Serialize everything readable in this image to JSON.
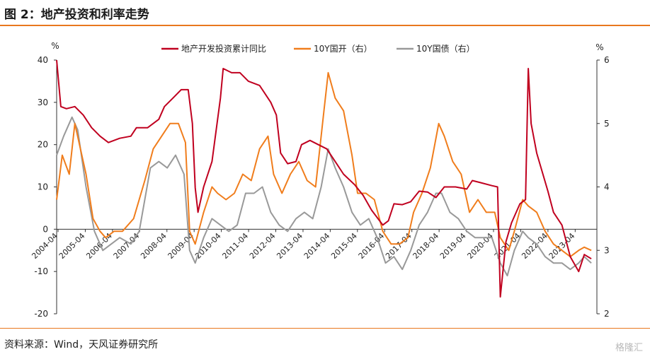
{
  "figure": {
    "title": "图 2：地产投资和利率走势",
    "source": "资料来源：Wind，天风证券研究所",
    "watermark": "格隆汇"
  },
  "chart_data": {
    "type": "line",
    "left_axis_unit": "%",
    "right_axis_unit": "%",
    "ylim_left": [
      -20,
      40
    ],
    "ylim_right": [
      2,
      6
    ],
    "left_ticks": [
      -20,
      -10,
      0,
      10,
      20,
      30,
      40
    ],
    "right_ticks": [
      2,
      3,
      4,
      5,
      6
    ],
    "x_labels": [
      "2004-04",
      "2005-04",
      "2006-04",
      "2007-04",
      "2008-04",
      "2009-04",
      "2010-04",
      "2011-04",
      "2012-04",
      "2013-04",
      "2014-04",
      "2015-04",
      "2016-04",
      "2017-04",
      "2018-04",
      "2019-04",
      "2020-04",
      "2021-04",
      "2022-04",
      "2023-04"
    ],
    "legend_position": "top",
    "series": [
      {
        "name": "地产开发投资累计同比",
        "axis": "left",
        "color": "#c0001f",
        "points": [
          [
            2004.25,
            40
          ],
          [
            2004.4,
            29
          ],
          [
            2004.6,
            28.5
          ],
          [
            2004.9,
            29
          ],
          [
            2005.2,
            27
          ],
          [
            2005.5,
            24
          ],
          [
            2005.8,
            22
          ],
          [
            2006.1,
            20.5
          ],
          [
            2006.5,
            21.5
          ],
          [
            2006.9,
            22
          ],
          [
            2007.1,
            24
          ],
          [
            2007.5,
            24
          ],
          [
            2007.9,
            26
          ],
          [
            2008.1,
            29
          ],
          [
            2008.4,
            31
          ],
          [
            2008.7,
            33
          ],
          [
            2008.95,
            33
          ],
          [
            2009.1,
            25
          ],
          [
            2009.2,
            9.8
          ],
          [
            2009.3,
            4
          ],
          [
            2009.5,
            10
          ],
          [
            2009.8,
            16
          ],
          [
            2010.1,
            31
          ],
          [
            2010.2,
            38
          ],
          [
            2010.5,
            37
          ],
          [
            2010.8,
            37
          ],
          [
            2011.1,
            35
          ],
          [
            2011.5,
            34
          ],
          [
            2011.9,
            30
          ],
          [
            2012.1,
            27
          ],
          [
            2012.25,
            18
          ],
          [
            2012.5,
            15.5
          ],
          [
            2012.8,
            16
          ],
          [
            2013.0,
            20
          ],
          [
            2013.3,
            21
          ],
          [
            2013.6,
            20
          ],
          [
            2013.9,
            19
          ],
          [
            2014.2,
            16
          ],
          [
            2014.5,
            13
          ],
          [
            2014.9,
            10.5
          ],
          [
            2015.2,
            8
          ],
          [
            2015.5,
            4.5
          ],
          [
            2015.9,
            1
          ],
          [
            2016.1,
            2
          ],
          [
            2016.3,
            6
          ],
          [
            2016.6,
            5.8
          ],
          [
            2016.9,
            6.5
          ],
          [
            2017.2,
            9
          ],
          [
            2017.5,
            8.8
          ],
          [
            2017.8,
            7.5
          ],
          [
            2018.1,
            10
          ],
          [
            2018.5,
            10
          ],
          [
            2018.9,
            9.5
          ],
          [
            2019.1,
            11.5
          ],
          [
            2019.4,
            11
          ],
          [
            2019.8,
            10.3
          ],
          [
            2020.0,
            10
          ],
          [
            2020.1,
            -16
          ],
          [
            2020.3,
            -3
          ],
          [
            2020.5,
            1.5
          ],
          [
            2020.8,
            6
          ],
          [
            2021.0,
            7
          ],
          [
            2021.1,
            38
          ],
          [
            2021.2,
            25
          ],
          [
            2021.4,
            18
          ],
          [
            2021.8,
            9
          ],
          [
            2022.0,
            4
          ],
          [
            2022.3,
            1
          ],
          [
            2022.6,
            -6.5
          ],
          [
            2022.9,
            -10
          ],
          [
            2023.1,
            -6
          ],
          [
            2023.35,
            -7
          ]
        ]
      },
      {
        "name": "10Y国开（右）",
        "axis": "right",
        "color": "#f07d1c",
        "points": [
          [
            2004.25,
            3.8
          ],
          [
            2004.45,
            4.5
          ],
          [
            2004.7,
            4.2
          ],
          [
            2004.9,
            5.0
          ],
          [
            2005.1,
            4.6
          ],
          [
            2005.3,
            4.2
          ],
          [
            2005.55,
            3.5
          ],
          [
            2005.8,
            3.3
          ],
          [
            2006.0,
            3.2
          ],
          [
            2006.3,
            3.3
          ],
          [
            2006.6,
            3.3
          ],
          [
            2007.0,
            3.5
          ],
          [
            2007.4,
            4.1
          ],
          [
            2007.7,
            4.6
          ],
          [
            2008.0,
            4.8
          ],
          [
            2008.3,
            5.0
          ],
          [
            2008.6,
            5.0
          ],
          [
            2008.85,
            4.7
          ],
          [
            2009.0,
            3.3
          ],
          [
            2009.2,
            3.1
          ],
          [
            2009.5,
            3.6
          ],
          [
            2009.8,
            4.0
          ],
          [
            2010.0,
            3.9
          ],
          [
            2010.3,
            3.8
          ],
          [
            2010.6,
            3.9
          ],
          [
            2010.9,
            4.2
          ],
          [
            2011.2,
            4.1
          ],
          [
            2011.5,
            4.6
          ],
          [
            2011.8,
            4.8
          ],
          [
            2012.0,
            4.2
          ],
          [
            2012.3,
            3.9
          ],
          [
            2012.6,
            4.2
          ],
          [
            2012.9,
            4.4
          ],
          [
            2013.2,
            4.1
          ],
          [
            2013.5,
            4.0
          ],
          [
            2013.8,
            5.2
          ],
          [
            2013.95,
            5.8
          ],
          [
            2014.2,
            5.4
          ],
          [
            2014.5,
            5.2
          ],
          [
            2014.8,
            4.5
          ],
          [
            2015.0,
            3.9
          ],
          [
            2015.3,
            3.9
          ],
          [
            2015.6,
            3.8
          ],
          [
            2015.9,
            3.3
          ],
          [
            2016.2,
            3.1
          ],
          [
            2016.5,
            3.1
          ],
          [
            2016.8,
            3.2
          ],
          [
            2017.0,
            3.6
          ],
          [
            2017.3,
            3.9
          ],
          [
            2017.6,
            4.3
          ],
          [
            2017.9,
            5.0
          ],
          [
            2018.1,
            4.8
          ],
          [
            2018.4,
            4.4
          ],
          [
            2018.7,
            4.2
          ],
          [
            2019.0,
            3.6
          ],
          [
            2019.3,
            3.8
          ],
          [
            2019.6,
            3.6
          ],
          [
            2019.9,
            3.6
          ],
          [
            2020.1,
            3.2
          ],
          [
            2020.4,
            3.0
          ],
          [
            2020.6,
            3.3
          ],
          [
            2020.9,
            3.8
          ],
          [
            2021.1,
            3.7
          ],
          [
            2021.4,
            3.6
          ],
          [
            2021.7,
            3.3
          ],
          [
            2022.0,
            3.1
          ],
          [
            2022.3,
            3.0
          ],
          [
            2022.6,
            2.9
          ],
          [
            2022.9,
            3.0
          ],
          [
            2023.1,
            3.05
          ],
          [
            2023.35,
            3.0
          ]
        ]
      },
      {
        "name": "10Y国债（右）",
        "axis": "right",
        "color": "#999999",
        "points": [
          [
            2004.25,
            4.5
          ],
          [
            2004.5,
            4.8
          ],
          [
            2004.8,
            5.1
          ],
          [
            2005.0,
            4.9
          ],
          [
            2005.3,
            4.0
          ],
          [
            2005.6,
            3.3
          ],
          [
            2005.9,
            3.0
          ],
          [
            2006.2,
            3.1
          ],
          [
            2006.5,
            3.2
          ],
          [
            2006.9,
            3.1
          ],
          [
            2007.2,
            3.3
          ],
          [
            2007.6,
            4.3
          ],
          [
            2007.9,
            4.4
          ],
          [
            2008.2,
            4.3
          ],
          [
            2008.5,
            4.5
          ],
          [
            2008.8,
            4.2
          ],
          [
            2009.0,
            3.0
          ],
          [
            2009.2,
            2.8
          ],
          [
            2009.5,
            3.2
          ],
          [
            2009.8,
            3.5
          ],
          [
            2010.1,
            3.4
          ],
          [
            2010.4,
            3.3
          ],
          [
            2010.7,
            3.4
          ],
          [
            2011.0,
            3.9
          ],
          [
            2011.3,
            3.9
          ],
          [
            2011.6,
            4.0
          ],
          [
            2011.9,
            3.6
          ],
          [
            2012.2,
            3.4
          ],
          [
            2012.5,
            3.3
          ],
          [
            2012.8,
            3.5
          ],
          [
            2013.1,
            3.6
          ],
          [
            2013.4,
            3.5
          ],
          [
            2013.7,
            4.0
          ],
          [
            2013.95,
            4.6
          ],
          [
            2014.2,
            4.3
          ],
          [
            2014.5,
            4.0
          ],
          [
            2014.8,
            3.6
          ],
          [
            2015.1,
            3.4
          ],
          [
            2015.4,
            3.5
          ],
          [
            2015.7,
            3.2
          ],
          [
            2016.0,
            2.8
          ],
          [
            2016.3,
            2.9
          ],
          [
            2016.6,
            2.7
          ],
          [
            2016.9,
            3.0
          ],
          [
            2017.2,
            3.4
          ],
          [
            2017.5,
            3.6
          ],
          [
            2017.8,
            3.9
          ],
          [
            2018.0,
            3.9
          ],
          [
            2018.3,
            3.6
          ],
          [
            2018.6,
            3.5
          ],
          [
            2018.9,
            3.3
          ],
          [
            2019.2,
            3.2
          ],
          [
            2019.5,
            3.2
          ],
          [
            2019.8,
            3.2
          ],
          [
            2020.1,
            2.8
          ],
          [
            2020.35,
            2.6
          ],
          [
            2020.6,
            3.0
          ],
          [
            2020.9,
            3.3
          ],
          [
            2021.1,
            3.2
          ],
          [
            2021.4,
            3.1
          ],
          [
            2021.7,
            2.9
          ],
          [
            2022.0,
            2.8
          ],
          [
            2022.3,
            2.8
          ],
          [
            2022.6,
            2.7
          ],
          [
            2022.9,
            2.8
          ],
          [
            2023.1,
            2.9
          ],
          [
            2023.35,
            2.8
          ]
        ]
      }
    ]
  }
}
